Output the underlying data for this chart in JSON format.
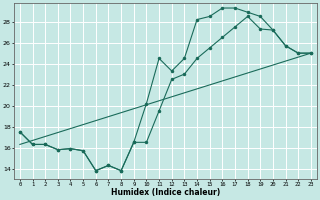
{
  "xlabel": "Humidex (Indice chaleur)",
  "xlim": [
    -0.5,
    23.5
  ],
  "ylim": [
    13.0,
    29.8
  ],
  "xticks": [
    0,
    1,
    2,
    3,
    4,
    5,
    6,
    7,
    8,
    9,
    10,
    11,
    12,
    13,
    14,
    15,
    16,
    17,
    18,
    19,
    20,
    21,
    22,
    23
  ],
  "yticks": [
    14,
    16,
    18,
    20,
    22,
    24,
    26,
    28
  ],
  "background_color": "#c6e8e4",
  "grid_color": "#ffffff",
  "line_color": "#1a6b5a",
  "line1_x": [
    0,
    1,
    2,
    3,
    4,
    5,
    6,
    7,
    8,
    9,
    10,
    11,
    12,
    13,
    14,
    15,
    16,
    17,
    18,
    19,
    20,
    21,
    22,
    23
  ],
  "line1_y": [
    17.5,
    16.3,
    16.3,
    15.8,
    15.9,
    15.7,
    13.8,
    14.3,
    13.8,
    16.5,
    20.2,
    24.5,
    23.3,
    24.5,
    28.2,
    28.5,
    29.3,
    29.3,
    28.9,
    28.5,
    27.2,
    25.7,
    25.0,
    25.0
  ],
  "line2_x": [
    0,
    1,
    2,
    3,
    4,
    5,
    6,
    7,
    8,
    9,
    10,
    11,
    12,
    13,
    14,
    15,
    16,
    17,
    18,
    19,
    20,
    21,
    22,
    23
  ],
  "line2_y": [
    17.5,
    16.3,
    16.3,
    15.8,
    15.9,
    15.7,
    13.8,
    14.3,
    13.8,
    16.5,
    16.5,
    19.5,
    22.5,
    23.0,
    24.5,
    25.5,
    26.5,
    27.5,
    28.5,
    27.3,
    27.2,
    25.7,
    25.0,
    25.0
  ],
  "line3_x": [
    0,
    23
  ],
  "line3_y": [
    16.3,
    25.0
  ]
}
